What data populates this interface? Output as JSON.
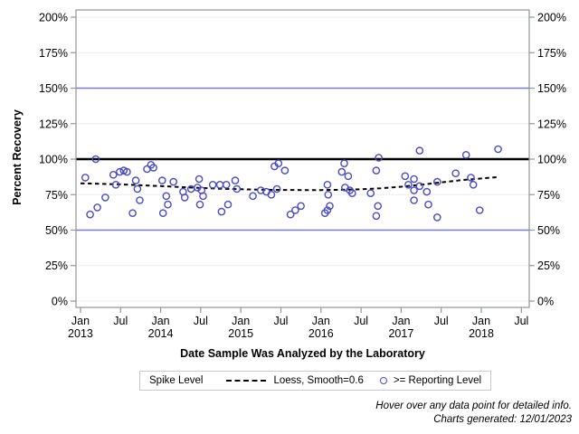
{
  "chart_data": {
    "type": "scatter",
    "title": "",
    "xlabel": "Date Sample Was Analyzed by the Laboratory",
    "ylabel": "Percent Recovery",
    "x_axis_range": [
      2012.944,
      2018.598
    ],
    "y_axis_range": [
      -4.46,
      205.1
    ],
    "grid": "horizontal-only",
    "y_ticks": [
      {
        "v": 0,
        "label": "0%"
      },
      {
        "v": 25,
        "label": "25%"
      },
      {
        "v": 50,
        "label": "50%"
      },
      {
        "v": 75,
        "label": "75%"
      },
      {
        "v": 100,
        "label": "100%"
      },
      {
        "v": 125,
        "label": "125%"
      },
      {
        "v": 150,
        "label": "150%"
      },
      {
        "v": 175,
        "label": "175%"
      },
      {
        "v": 200,
        "label": "200%"
      }
    ],
    "x_ticks": [
      {
        "v": 2013.0,
        "label": "Jan",
        "year": "2013"
      },
      {
        "v": 2013.5,
        "label": "Jul",
        "year": ""
      },
      {
        "v": 2014.0,
        "label": "Jan",
        "year": "2014"
      },
      {
        "v": 2014.5,
        "label": "Jul",
        "year": ""
      },
      {
        "v": 2015.0,
        "label": "Jan",
        "year": "2015"
      },
      {
        "v": 2015.5,
        "label": "Jul",
        "year": ""
      },
      {
        "v": 2016.0,
        "label": "Jan",
        "year": "2016"
      },
      {
        "v": 2016.5,
        "label": "Jul",
        "year": ""
      },
      {
        "v": 2017.0,
        "label": "Jan",
        "year": "2017"
      },
      {
        "v": 2017.5,
        "label": "Jul",
        "year": ""
      },
      {
        "v": 2018.0,
        "label": "Jan",
        "year": "2018"
      },
      {
        "v": 2018.5,
        "label": "Jul",
        "year": ""
      }
    ],
    "ref_lines": [
      {
        "v": 150,
        "kind": "limit"
      },
      {
        "v": 50,
        "kind": "limit"
      },
      {
        "v": 100,
        "kind": "spike"
      }
    ],
    "series": [
      {
        "name": ">= Reporting Level",
        "type": "scatter-open-circle",
        "points": [
          [
            2013.06,
            87
          ],
          [
            2013.12,
            61
          ],
          [
            2013.19,
            100
          ],
          [
            2013.21,
            66
          ],
          [
            2013.31,
            73
          ],
          [
            2013.41,
            89
          ],
          [
            2013.44,
            82
          ],
          [
            2013.49,
            91
          ],
          [
            2013.54,
            92
          ],
          [
            2013.58,
            91
          ],
          [
            2013.65,
            62
          ],
          [
            2013.69,
            85
          ],
          [
            2013.71,
            79
          ],
          [
            2013.74,
            71
          ],
          [
            2013.83,
            93
          ],
          [
            2013.88,
            96
          ],
          [
            2013.91,
            94
          ],
          [
            2014.02,
            85
          ],
          [
            2014.03,
            62
          ],
          [
            2014.07,
            74
          ],
          [
            2014.09,
            68
          ],
          [
            2014.16,
            84
          ],
          [
            2014.28,
            77
          ],
          [
            2014.3,
            73
          ],
          [
            2014.38,
            79
          ],
          [
            2014.46,
            80
          ],
          [
            2014.48,
            86
          ],
          [
            2014.49,
            68
          ],
          [
            2014.51,
            78
          ],
          [
            2014.53,
            74
          ],
          [
            2014.65,
            82
          ],
          [
            2014.74,
            82
          ],
          [
            2014.76,
            63
          ],
          [
            2014.82,
            82
          ],
          [
            2014.84,
            68
          ],
          [
            2014.93,
            85
          ],
          [
            2014.95,
            79
          ],
          [
            2015.15,
            74
          ],
          [
            2015.25,
            78
          ],
          [
            2015.32,
            77
          ],
          [
            2015.38,
            75
          ],
          [
            2015.42,
            95
          ],
          [
            2015.45,
            79
          ],
          [
            2015.47,
            97
          ],
          [
            2015.55,
            92
          ],
          [
            2015.62,
            61
          ],
          [
            2015.68,
            64
          ],
          [
            2015.75,
            67
          ],
          [
            2016.05,
            62
          ],
          [
            2016.08,
            82
          ],
          [
            2016.08,
            64
          ],
          [
            2016.09,
            75
          ],
          [
            2016.11,
            67
          ],
          [
            2016.26,
            91
          ],
          [
            2016.29,
            97
          ],
          [
            2016.3,
            80
          ],
          [
            2016.34,
            88
          ],
          [
            2016.36,
            78
          ],
          [
            2016.39,
            76
          ],
          [
            2016.62,
            76
          ],
          [
            2016.69,
            92
          ],
          [
            2016.69,
            60
          ],
          [
            2016.71,
            67
          ],
          [
            2016.72,
            101
          ],
          [
            2017.05,
            88
          ],
          [
            2017.09,
            82
          ],
          [
            2017.16,
            86
          ],
          [
            2017.16,
            78
          ],
          [
            2017.16,
            71
          ],
          [
            2017.23,
            106
          ],
          [
            2017.23,
            81
          ],
          [
            2017.32,
            77
          ],
          [
            2017.34,
            68
          ],
          [
            2017.45,
            84
          ],
          [
            2017.45,
            59
          ],
          [
            2017.68,
            90
          ],
          [
            2017.81,
            103
          ],
          [
            2017.87,
            87
          ],
          [
            2017.9,
            82
          ],
          [
            2017.98,
            64
          ],
          [
            2018.21,
            107
          ]
        ]
      },
      {
        "name": "Loess, Smooth=0.6",
        "type": "dashed-line",
        "points": [
          [
            2013.0,
            83.0
          ],
          [
            2013.25,
            82.6
          ],
          [
            2013.5,
            82.2
          ],
          [
            2013.75,
            81.6
          ],
          [
            2014.0,
            81.0
          ],
          [
            2014.25,
            80.3
          ],
          [
            2014.5,
            79.7
          ],
          [
            2014.75,
            79.2
          ],
          [
            2015.0,
            78.8
          ],
          [
            2015.25,
            78.5
          ],
          [
            2015.5,
            78.3
          ],
          [
            2015.75,
            78.2
          ],
          [
            2016.0,
            78.2
          ],
          [
            2016.25,
            78.4
          ],
          [
            2016.5,
            78.8
          ],
          [
            2016.75,
            79.5
          ],
          [
            2017.0,
            80.6
          ],
          [
            2017.25,
            82.0
          ],
          [
            2017.5,
            83.6
          ],
          [
            2017.75,
            85.2
          ],
          [
            2018.0,
            86.4
          ],
          [
            2018.2,
            87.3
          ]
        ]
      }
    ],
    "legend": {
      "title": "Spike Level",
      "items": [
        {
          "glyph": "dashed-line",
          "label": "Loess, Smooth=0.6"
        },
        {
          "glyph": "open-circle",
          "label": ">= Reporting Level"
        }
      ],
      "position": "bottom-center"
    },
    "footer": {
      "line1": "Hover over any data point for detailed info.",
      "line2": "Charts generated: 12/01/2023"
    }
  },
  "colors": {
    "marker": "#4a4ac4",
    "ref_line_limit": "#7b7bc8",
    "ref_line_spike": "#000000",
    "loess": "#000000",
    "frame": "#8f969c",
    "grid": "#f0f0f0",
    "tick": "#8f969c",
    "text": "#000000",
    "legend_border": "#c9c9c9",
    "background": "#ffffff"
  }
}
